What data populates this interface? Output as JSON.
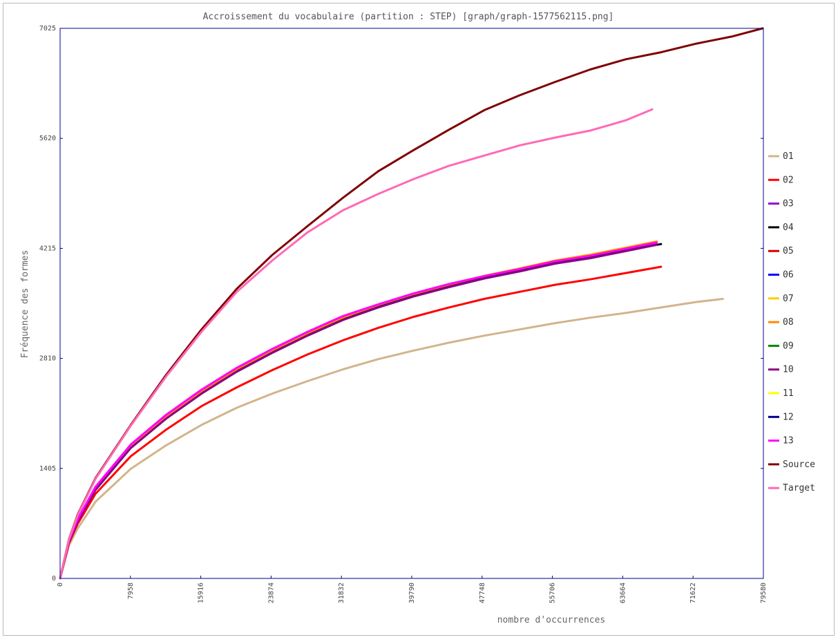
{
  "chart_data": {
    "type": "line",
    "title": "Accroissement du vocabulaire (partition : STEP) [graph/graph-1577562115.png]",
    "xlabel": "nombre d'occurrences",
    "ylabel": "Fréquence des formes",
    "xlim": [
      0,
      79580
    ],
    "ylim": [
      0,
      7025
    ],
    "x_ticks": [
      "0",
      "7958",
      "15916",
      "23874",
      "31832",
      "39790",
      "47748",
      "55706",
      "63664",
      "71622",
      "79580"
    ],
    "y_ticks": [
      "0",
      "1405",
      "2810",
      "4215",
      "5620",
      "7025"
    ],
    "grid": false,
    "legend_position": "right",
    "series": [
      {
        "name": "01",
        "color": "#d2b48c",
        "x": [
          0,
          1000,
          2000,
          4000,
          8000,
          12000,
          16000,
          20000,
          24000,
          28000,
          32000,
          36000,
          40000,
          44000,
          48000,
          52000,
          56000,
          60000,
          64000,
          68000,
          72000,
          75000
        ],
        "y": [
          0,
          420,
          640,
          980,
          1400,
          1700,
          1960,
          2180,
          2360,
          2520,
          2670,
          2800,
          2910,
          3010,
          3100,
          3180,
          3260,
          3330,
          3390,
          3460,
          3530,
          3570
        ]
      },
      {
        "name": "02",
        "color": "#ff0000",
        "x": [
          0,
          1000,
          2000,
          4000,
          8000,
          12000,
          16000,
          20000,
          24000,
          28000,
          32000,
          36000,
          40000,
          44000,
          48000,
          52000,
          56000,
          60000,
          64000,
          68000
        ],
        "y": [
          0,
          450,
          700,
          1080,
          1560,
          1900,
          2200,
          2440,
          2660,
          2860,
          3040,
          3200,
          3340,
          3460,
          3570,
          3660,
          3750,
          3820,
          3900,
          3980
        ]
      },
      {
        "name": "03",
        "color": "#9400d3",
        "x": [
          0,
          1000,
          2000,
          4000,
          8000,
          12000,
          16000,
          20000,
          24000,
          28000,
          32000,
          36000,
          40000,
          44000,
          48000,
          52000,
          56000,
          60000,
          64000,
          67500
        ],
        "y": [
          0,
          470,
          740,
          1140,
          1680,
          2060,
          2380,
          2660,
          2900,
          3120,
          3320,
          3480,
          3620,
          3740,
          3850,
          3940,
          4040,
          4110,
          4200,
          4270
        ]
      },
      {
        "name": "04",
        "color": "#000000",
        "x": [
          0,
          1000,
          2000,
          4000,
          8000,
          12000,
          16000,
          20000,
          24000,
          28000,
          32000,
          36000,
          40000,
          44000,
          48000,
          52000,
          56000,
          60000,
          64000,
          68000
        ],
        "y": [
          0,
          468,
          735,
          1135,
          1670,
          2050,
          2370,
          2650,
          2890,
          3110,
          3310,
          3470,
          3610,
          3730,
          3840,
          3930,
          4030,
          4100,
          4190,
          4270
        ]
      },
      {
        "name": "05",
        "color": "#cc0000",
        "x": [],
        "y": []
      },
      {
        "name": "06",
        "color": "#0000ff",
        "x": [],
        "y": []
      },
      {
        "name": "07",
        "color": "#ffcc00",
        "x": [
          0,
          1000,
          2000,
          4000,
          8000,
          12000,
          16000,
          20000,
          24000,
          28000,
          32000,
          36000,
          40000,
          44000,
          48000,
          52000,
          56000,
          60000,
          64000,
          67500
        ],
        "y": [
          0,
          475,
          745,
          1150,
          1690,
          2070,
          2395,
          2675,
          2915,
          3135,
          3335,
          3495,
          3635,
          3755,
          3865,
          3960,
          4060,
          4135,
          4225,
          4305
        ]
      },
      {
        "name": "08",
        "color": "#ff8800",
        "x": [
          0,
          1000,
          2000,
          4000,
          8000,
          12000,
          16000,
          20000,
          24000,
          28000,
          32000,
          36000,
          40000,
          44000,
          48000,
          52000,
          56000,
          60000,
          64000,
          67500
        ],
        "y": [
          0,
          473,
          743,
          1148,
          1688,
          2068,
          2392,
          2672,
          2912,
          3132,
          3332,
          3492,
          3632,
          3752,
          3862,
          3956,
          4056,
          4130,
          4220,
          4300
        ]
      },
      {
        "name": "09",
        "color": "#008800",
        "x": [],
        "y": []
      },
      {
        "name": "10",
        "color": "#880088",
        "x": [
          0,
          1000,
          2000,
          4000,
          8000,
          12000,
          16000,
          20000,
          24000,
          28000,
          32000,
          36000,
          40000,
          44000,
          48000,
          52000,
          56000,
          60000,
          64000,
          67500
        ],
        "y": [
          0,
          465,
          730,
          1130,
          1665,
          2040,
          2360,
          2640,
          2880,
          3100,
          3300,
          3460,
          3600,
          3720,
          3830,
          3920,
          4020,
          4090,
          4180,
          4260
        ]
      },
      {
        "name": "11",
        "color": "#ffff00",
        "x": [],
        "y": []
      },
      {
        "name": "12",
        "color": "#000088",
        "x": [],
        "y": []
      },
      {
        "name": "13",
        "color": "#ff00ff",
        "x": [
          0,
          1000,
          2000,
          4000,
          8000,
          12000,
          16000,
          20000,
          24000,
          28000,
          32000,
          36000,
          40000,
          44000,
          48000,
          52000,
          56000,
          60000,
          64000,
          67500
        ],
        "y": [
          0,
          480,
          760,
          1170,
          1710,
          2090,
          2410,
          2690,
          2930,
          3150,
          3350,
          3500,
          3640,
          3760,
          3860,
          3950,
          4050,
          4120,
          4210,
          4290
        ]
      },
      {
        "name": "Source",
        "color": "#7f0000",
        "x": [
          0,
          1000,
          2000,
          4000,
          8000,
          12000,
          16000,
          20000,
          24000,
          28000,
          32000,
          36000,
          40000,
          44000,
          48000,
          52000,
          56000,
          60000,
          64000,
          68000,
          72000,
          76000,
          79500
        ],
        "y": [
          0,
          500,
          820,
          1280,
          1960,
          2600,
          3180,
          3700,
          4130,
          4500,
          4860,
          5200,
          5470,
          5730,
          5980,
          6170,
          6340,
          6500,
          6630,
          6720,
          6830,
          6920,
          7025
        ]
      },
      {
        "name": "Target",
        "color": "#ff69b4",
        "x": [
          0,
          1000,
          2000,
          4000,
          8000,
          12000,
          16000,
          20000,
          24000,
          28000,
          32000,
          36000,
          40000,
          44000,
          48000,
          52000,
          56000,
          60000,
          64000,
          67000
        ],
        "y": [
          0,
          495,
          810,
          1270,
          1950,
          2580,
          3150,
          3660,
          4060,
          4420,
          4700,
          4910,
          5100,
          5270,
          5400,
          5530,
          5630,
          5720,
          5850,
          5990
        ]
      }
    ]
  }
}
